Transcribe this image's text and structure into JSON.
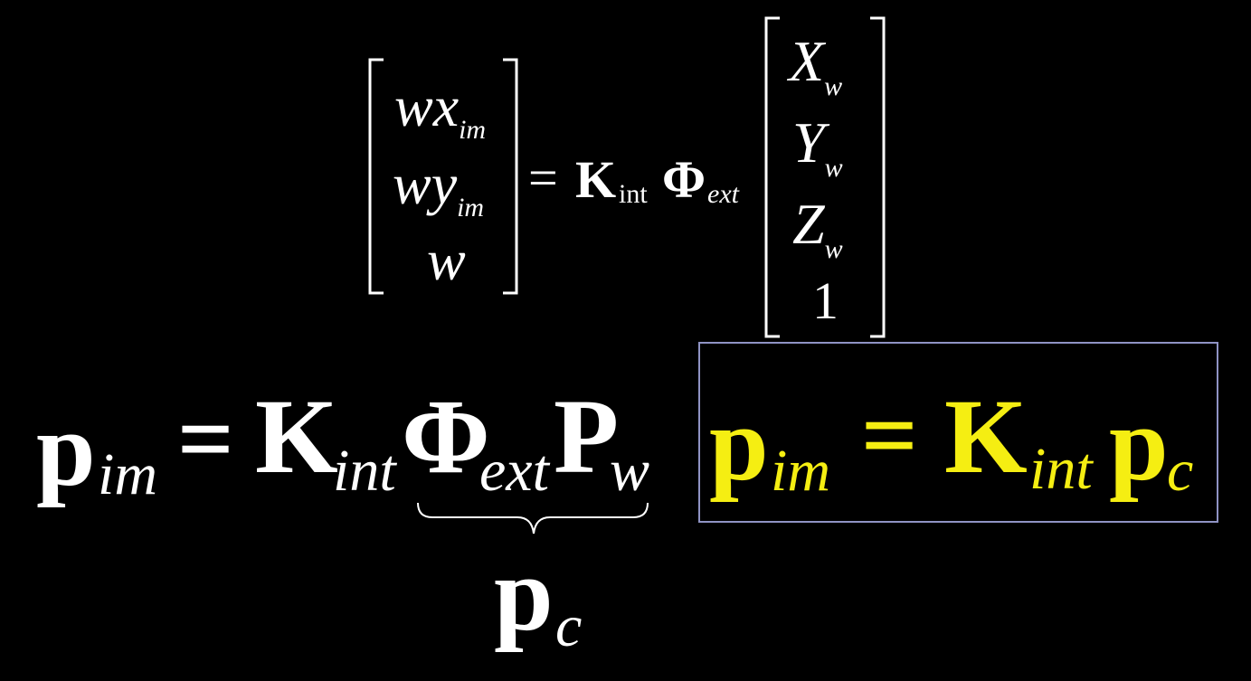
{
  "matrix_equation": {
    "lhs": [
      {
        "main": "wx",
        "sub": "im"
      },
      {
        "main": "wy",
        "sub": "im"
      },
      {
        "main": "w",
        "sub": ""
      }
    ],
    "equals": "=",
    "k_symbol": "K",
    "k_sub": "int",
    "phi_symbol": "Φ",
    "phi_sub": "ext",
    "rhs": [
      {
        "main": "X",
        "sub": "w"
      },
      {
        "main": "Y",
        "sub": "w"
      },
      {
        "main": "Z",
        "sub": "w"
      },
      {
        "main": "1",
        "sub": ""
      }
    ]
  },
  "main_equation": {
    "p_symbol": "p",
    "p_sub": "im",
    "equals": "=",
    "k_symbol": "K",
    "k_sub": "int",
    "phi_symbol": "Φ",
    "phi_sub": "ext",
    "P_symbol": "P",
    "P_sub": "w",
    "brace_label": "p",
    "brace_label_sub": "c"
  },
  "boxed_equation": {
    "p_symbol": "p",
    "p_sub": "im",
    "equals": "=",
    "k_symbol": "K",
    "k_sub": "int",
    "pc_symbol": "p",
    "pc_sub": "c",
    "text_color": "#f5ee12",
    "border_color": "#8f93c4"
  }
}
